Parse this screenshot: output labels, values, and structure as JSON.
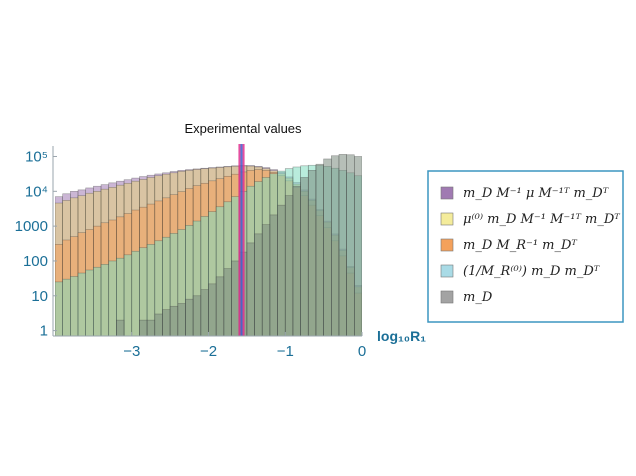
{
  "chart_data": {
    "type": "bar",
    "title": "",
    "annotation": "Experimental values",
    "xlabel": "log₁₀R₁",
    "ylabel": "",
    "x_scale": "log10 R1",
    "y_scale": "log",
    "xlim": [
      -4,
      0
    ],
    "x_ticks": [
      {
        "value": -3,
        "label": "−3"
      },
      {
        "value": -2,
        "label": "−2"
      },
      {
        "value": -1,
        "label": "−1"
      },
      {
        "value": 0,
        "label": "0"
      }
    ],
    "y_ticks": [
      {
        "value": 1,
        "label": "1"
      },
      {
        "value": 10,
        "label": "10"
      },
      {
        "value": 100,
        "label": "100"
      },
      {
        "value": 1000,
        "label": "1000"
      },
      {
        "value": 10000,
        "label": "10⁴"
      },
      {
        "value": 100000,
        "label": "10⁵"
      }
    ],
    "ylim": [
      0.7,
      200000
    ],
    "bin_width": 0.1,
    "x": [
      -3.95,
      -3.85,
      -3.75,
      -3.65,
      -3.55,
      -3.45,
      -3.35,
      -3.25,
      -3.15,
      -3.05,
      -2.95,
      -2.85,
      -2.75,
      -2.65,
      -2.55,
      -2.45,
      -2.35,
      -2.25,
      -2.15,
      -2.05,
      -1.95,
      -1.85,
      -1.75,
      -1.65,
      -1.55,
      -1.45,
      -1.35,
      -1.25,
      -1.15,
      -1.05,
      -0.95,
      -0.85,
      -0.75,
      -0.65,
      -0.55,
      -0.45,
      -0.35,
      -0.25,
      -0.15,
      -0.05
    ],
    "series": [
      {
        "name": "m_D M⁻¹ μ M⁻¹ᵀ m_Dᵀ",
        "color": "#a07ab2",
        "values": [
          7000,
          8500,
          10000,
          11000,
          12500,
          14000,
          15500,
          17500,
          19500,
          21500,
          24000,
          26500,
          29000,
          31500,
          34000,
          37000,
          40000,
          42000,
          44000,
          46000,
          48000,
          50000,
          52000,
          54000,
          55000,
          55000,
          52000,
          48000,
          42000,
          35000,
          26000,
          18000,
          11000,
          6000,
          3000,
          1400,
          600,
          220,
          70,
          20
        ]
      },
      {
        "name": "μ⁽⁰⁾ m_D M⁻¹ M⁻¹ᵀ m_Dᵀ",
        "color": "#e6cf7a",
        "values": [
          4600,
          5500,
          6500,
          7500,
          8800,
          10000,
          11500,
          13000,
          15000,
          17000,
          19500,
          22000,
          25000,
          28000,
          31000,
          34000,
          37500,
          40000,
          42500,
          44500,
          46500,
          48500,
          50500,
          52500,
          53500,
          53000,
          50000,
          45000,
          39000,
          32000,
          24000,
          16000,
          10000,
          5500,
          2800,
          1300,
          550,
          200,
          65,
          18
        ]
      },
      {
        "name": "m_D M_R⁻¹ m_Dᵀ",
        "color": "#f4a15b",
        "values": [
          300,
          400,
          500,
          650,
          800,
          1000,
          1250,
          1500,
          1850,
          2300,
          2900,
          3500,
          4300,
          5300,
          6500,
          8000,
          9800,
          12000,
          14500,
          17000,
          20000,
          23000,
          27000,
          31000,
          36000,
          40000,
          42000,
          40000,
          35000,
          28000,
          20000,
          13000,
          7500,
          4000,
          2000,
          900,
          380,
          140,
          45,
          12
        ]
      },
      {
        "name": "(1/M_R⁽⁰⁾) m_D m_Dᵀ",
        "color": "#7fdcc0",
        "values": [
          25,
          30,
          36,
          45,
          55,
          66,
          80,
          100,
          120,
          150,
          190,
          240,
          300,
          380,
          480,
          620,
          800,
          1050,
          1400,
          1900,
          2600,
          3600,
          5000,
          7000,
          10000,
          14000,
          19000,
          25000,
          32000,
          38000,
          45000,
          50000,
          54000,
          56000,
          55000,
          52000,
          46000,
          40000,
          34000,
          28000
        ]
      },
      {
        "name": "m_D",
        "color": "#7a8a7e",
        "values": [
          null,
          null,
          null,
          null,
          null,
          null,
          null,
          null,
          2,
          null,
          null,
          2,
          2,
          3,
          4,
          5,
          6,
          8,
          10,
          15,
          22,
          35,
          60,
          100,
          180,
          330,
          600,
          1100,
          2100,
          4000,
          7500,
          14000,
          25000,
          40000,
          60000,
          85000,
          105000,
          115000,
          112000,
          100000
        ]
      }
    ],
    "experimental_band": {
      "x_range": [
        -1.61,
        -1.53
      ],
      "colors": [
        "#e0308f",
        "#3a5fcd",
        "#e0308f"
      ]
    },
    "legend": {
      "placement": "right",
      "entries": [
        {
          "label": "m_D M⁻¹ μ M⁻¹ᵀ m_Dᵀ",
          "swatch": "#a07ab2"
        },
        {
          "label": "μ⁽⁰⁾ m_D M⁻¹ M⁻¹ᵀ m_Dᵀ",
          "swatch": "#f4ec9b"
        },
        {
          "label": "m_D M_R⁻¹ m_Dᵀ",
          "swatch": "#f4a15b"
        },
        {
          "label": "(1/M_R⁽⁰⁾) m_D m_Dᵀ",
          "swatch": "#a9dbe6"
        },
        {
          "label": "m_D",
          "swatch": "#a3a3a3"
        }
      ]
    },
    "grid": false
  }
}
